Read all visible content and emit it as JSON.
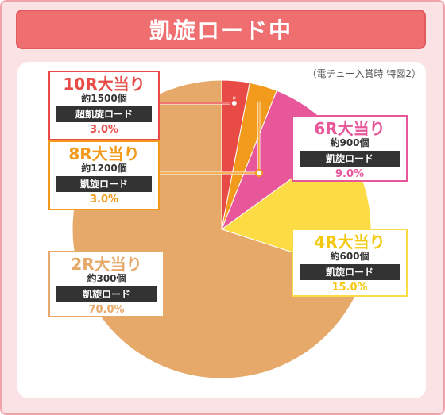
{
  "title": "凱旋ロード中",
  "note": "（電チュー入賞時 特図2）",
  "chart_data": {
    "type": "pie",
    "title": "凱旋ロード中",
    "subtitle": "（電チュー入賞時 特図2）",
    "slices": [
      {
        "name": "10R大当り",
        "payout": "約1500個",
        "rush": "超凱旋ロード",
        "pct_label": "3.0%",
        "value": 3.0,
        "color": "#e84a46"
      },
      {
        "name": "8R大当り",
        "payout": "約1200個",
        "rush": "凱旋ロード",
        "pct_label": "3.0%",
        "value": 3.0,
        "color": "#f19a1b"
      },
      {
        "name": "6R大当り",
        "payout": "約900個",
        "rush": "凱旋ロード",
        "pct_label": "9.0%",
        "value": 9.0,
        "color": "#e8579a"
      },
      {
        "name": "4R大当り",
        "payout": "約600個",
        "rush": "凱旋ロード",
        "pct_label": "15.0%",
        "value": 15.0,
        "color": "#fcdc44"
      },
      {
        "name": "2R大当り",
        "payout": "約300個",
        "rush": "凱旋ロード",
        "pct_label": "70.0%",
        "value": 70.0,
        "color": "#e6a96a"
      }
    ]
  }
}
